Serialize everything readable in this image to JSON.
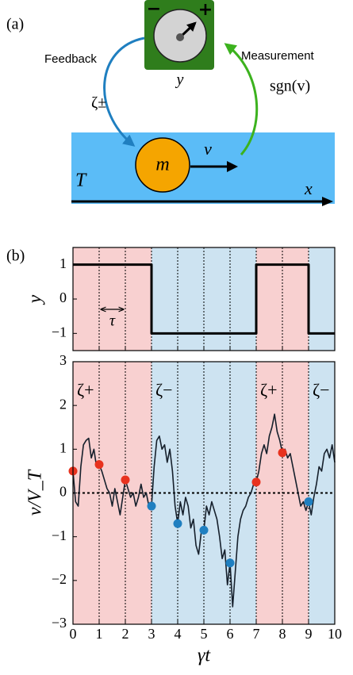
{
  "panel_labels": [
    "(a)",
    "(b)"
  ],
  "diagram": {
    "feedback_label": "Feedback",
    "measurement_label": "Measurement",
    "feedback_symbol": "ζ±",
    "measurement_symbol": "sgn(v)",
    "meter_label": "y",
    "meter_minus": "−",
    "meter_plus": "+",
    "mass_label": "m",
    "velocity_label": "v",
    "temperature_label": "T",
    "axis_label": "x"
  },
  "chart_data": [
    {
      "type": "line",
      "ylabel": "y",
      "xlim": [
        0,
        10
      ],
      "ylim": [
        -1.5,
        1.5
      ],
      "xticks": [
        0,
        1,
        2,
        3,
        4,
        5,
        6,
        7,
        8,
        9,
        10
      ],
      "xtick_labels": false,
      "yticks": [
        {
          "value": -1,
          "label": "−1"
        },
        0,
        1
      ],
      "annotation": "τ",
      "region_colors": {
        "positive": "#f8d0d0",
        "negative": "#cde3f1"
      },
      "series": [
        {
          "color": "#000000",
          "style": "line",
          "x": [
            0,
            3,
            3,
            7,
            7,
            9,
            9,
            10
          ],
          "values": [
            1,
            1,
            -1,
            -1,
            1,
            1,
            -1,
            -1
          ]
        }
      ]
    },
    {
      "type": "line",
      "ylabel": "v/V_T",
      "xlabel": "γt",
      "xlim": [
        0,
        10
      ],
      "ylim": [
        -3,
        3
      ],
      "xticks": [
        0,
        1,
        2,
        3,
        4,
        5,
        6,
        7,
        8,
        9,
        10
      ],
      "xtick_labels": true,
      "yticks": [
        {
          "value": -3,
          "label": "−3"
        },
        {
          "value": -2,
          "label": "−2"
        },
        {
          "value": -1,
          "label": "−1"
        },
        0,
        1,
        2,
        3
      ],
      "hlines": [
        0
      ],
      "region_labels": [
        {
          "text": "ζ+",
          "color": "#e8321e"
        },
        {
          "text": "ζ−",
          "color": "#2233bb"
        },
        {
          "text": "ζ+",
          "color": "#e8321e"
        },
        {
          "text": "ζ−",
          "color": "#2233bb"
        }
      ],
      "series": [
        {
          "color": "#16202c",
          "style": "line",
          "x": [
            0,
            0.1,
            0.2,
            0.3,
            0.4,
            0.5,
            0.6,
            0.7,
            0.8,
            0.9,
            1,
            1.1,
            1.2,
            1.3,
            1.4,
            1.5,
            1.6,
            1.7,
            1.8,
            1.9,
            2,
            2.1,
            2.2,
            2.3,
            2.4,
            2.5,
            2.6,
            2.7,
            2.8,
            2.9,
            3,
            3.1,
            3.2,
            3.3,
            3.4,
            3.5,
            3.6,
            3.7,
            3.8,
            3.9,
            4,
            4.1,
            4.2,
            4.3,
            4.4,
            4.5,
            4.6,
            4.7,
            4.8,
            4.9,
            5,
            5.1,
            5.2,
            5.3,
            5.4,
            5.5,
            5.6,
            5.7,
            5.8,
            5.9,
            6,
            6.1,
            6.2,
            6.3,
            6.4,
            6.5,
            6.6,
            6.7,
            6.8,
            6.9,
            7,
            7.1,
            7.2,
            7.3,
            7.4,
            7.5,
            7.6,
            7.7,
            7.8,
            7.9,
            8,
            8.1,
            8.2,
            8.3,
            8.4,
            8.5,
            8.6,
            8.7,
            8.8,
            8.9,
            9,
            9.1,
            9.2,
            9.3,
            9.4,
            9.5,
            9.6,
            9.7,
            9.8,
            9.9,
            10
          ],
          "values": [
            0.5,
            -0.2,
            -0.3,
            0.6,
            1.1,
            1.2,
            1.25,
            0.8,
            1.0,
            0.6,
            0.65,
            0.5,
            0.3,
            0.1,
            0.0,
            -0.3,
            0.1,
            -0.2,
            -0.5,
            -0.1,
            0.3,
            0.1,
            -0.1,
            0.0,
            -0.3,
            -0.1,
            0.2,
            -0.1,
            0.0,
            -0.3,
            -0.3,
            0.6,
            1.2,
            1.3,
            1.0,
            1.1,
            0.7,
            1.0,
            0.5,
            -0.3,
            -0.7,
            -0.2,
            -0.5,
            -0.1,
            -0.3,
            -0.8,
            -0.6,
            -1.2,
            -1.4,
            -0.9,
            -0.85,
            -0.3,
            -0.5,
            -0.2,
            -0.4,
            -0.6,
            -1.0,
            -1.5,
            -1.3,
            -2.1,
            -1.6,
            -2.6,
            -1.8,
            -1.0,
            -0.6,
            -0.4,
            -0.3,
            -0.1,
            0.0,
            0.2,
            0.25,
            0.5,
            0.9,
            1.1,
            0.9,
            1.3,
            1.5,
            1.8,
            1.4,
            1.2,
            0.92,
            1.0,
            0.8,
            0.9,
            0.6,
            0.3,
            0.0,
            -0.3,
            -0.2,
            -0.4,
            -0.2,
            -0.5,
            -0.1,
            0.2,
            0.6,
            0.5,
            0.9,
            1.0,
            0.8,
            1.1,
            0.7
          ]
        },
        {
          "style": "markers",
          "x": [
            0,
            1,
            2,
            3,
            4,
            5,
            6,
            7,
            8,
            9
          ],
          "values": [
            0.5,
            0.65,
            0.3,
            -0.3,
            -0.7,
            -0.85,
            -1.6,
            0.25,
            0.92,
            -0.2
          ],
          "colors": [
            "#e8321e",
            "#e8321e",
            "#e8321e",
            "#1f7fc0",
            "#1f7fc0",
            "#1f7fc0",
            "#1f7fc0",
            "#e8321e",
            "#e8321e",
            "#1f7fc0"
          ]
        }
      ]
    }
  ]
}
